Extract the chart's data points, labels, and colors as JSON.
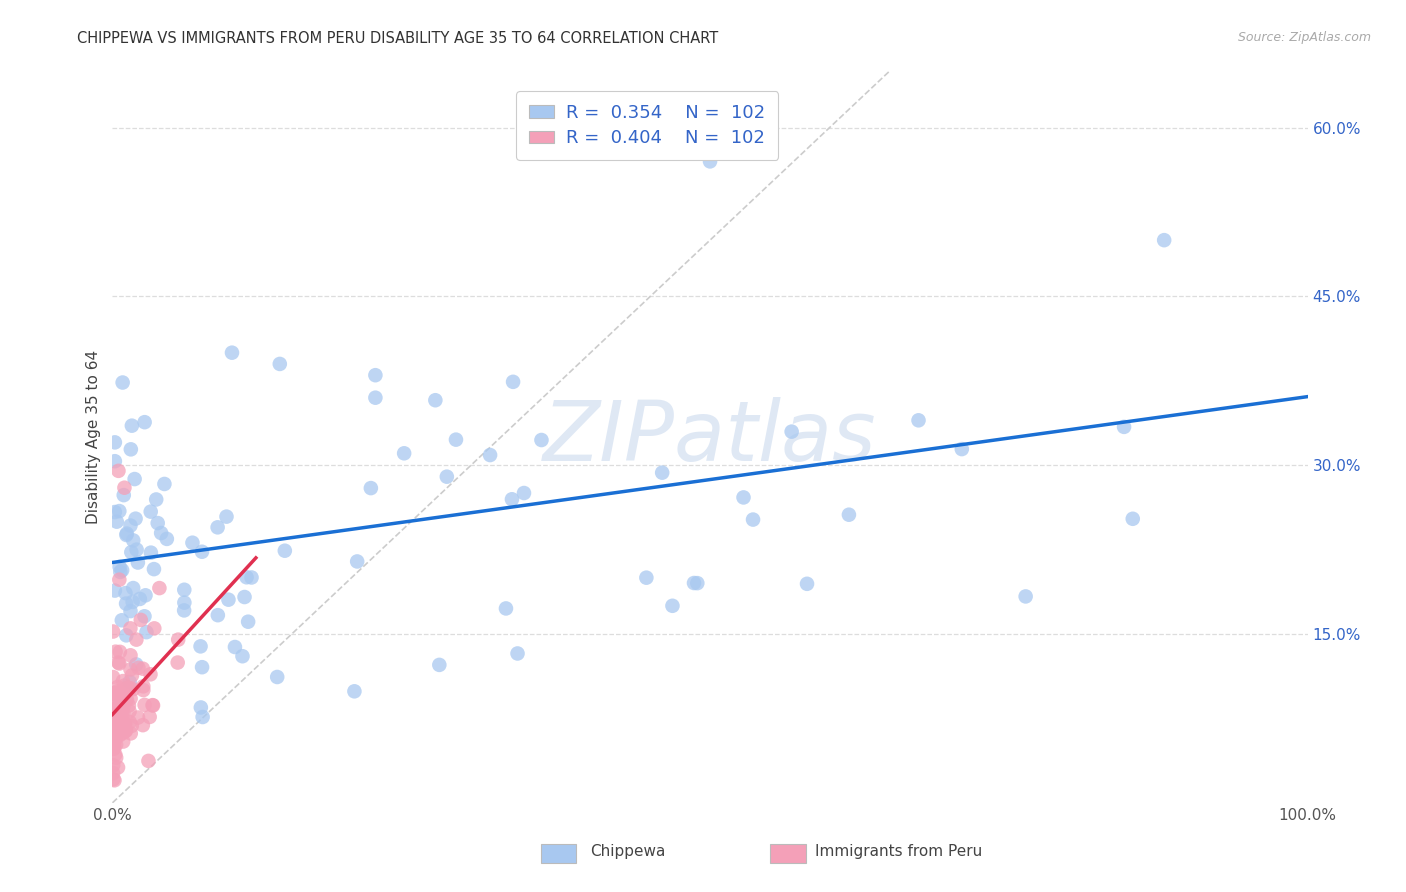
{
  "title": "CHIPPEWA VS IMMIGRANTS FROM PERU DISABILITY AGE 35 TO 64 CORRELATION CHART",
  "source": "Source: ZipAtlas.com",
  "ylabel": "Disability Age 35 to 64",
  "blue_color": "#a8c8f0",
  "pink_color": "#f4a0b8",
  "blue_line_color": "#1a6fd4",
  "pink_line_color": "#e03050",
  "diagonal_color": "#cccccc",
  "r_n_color": "#3465c8",
  "black_color": "#333333",
  "background_color": "#ffffff",
  "grid_color": "#dddddd",
  "watermark": "ZIPatlas",
  "y_ticks": [
    0.15,
    0.3,
    0.45,
    0.6
  ],
  "y_tick_labels": [
    "15.0%",
    "30.0%",
    "45.0%",
    "60.0%"
  ],
  "x_ticks": [
    0.0,
    0.2,
    0.4,
    0.6,
    0.8,
    1.0
  ],
  "x_tick_labels": [
    "0.0%",
    "",
    "",
    "",
    "",
    "100.0%"
  ]
}
